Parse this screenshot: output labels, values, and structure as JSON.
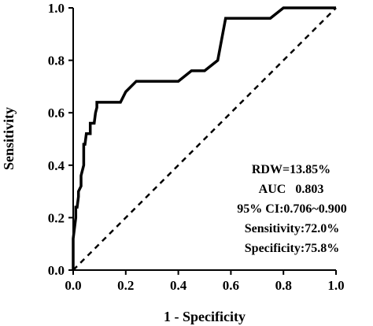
{
  "chart_data": {
    "type": "line",
    "xlabel": "1 - Specificity",
    "ylabel": "Sensitivity",
    "xlim": [
      0.0,
      1.0
    ],
    "ylim": [
      0.0,
      1.0
    ],
    "x_ticks": [
      "0.0",
      "0.2",
      "0.4",
      "0.6",
      "0.8",
      "1.0"
    ],
    "y_ticks": [
      "0.0",
      "0.2",
      "0.4",
      "0.6",
      "0.8",
      "1.0"
    ],
    "grid": false,
    "series": [
      {
        "style": "solid",
        "color": "#000000",
        "x": [
          0.0,
          0.0,
          0.01,
          0.01,
          0.015,
          0.02,
          0.02,
          0.03,
          0.03,
          0.04,
          0.04,
          0.045,
          0.05,
          0.05,
          0.065,
          0.065,
          0.08,
          0.085,
          0.09,
          0.09,
          0.18,
          0.2,
          0.24,
          0.24,
          0.4,
          0.45,
          0.5,
          0.55,
          0.58,
          0.6,
          0.75,
          0.8,
          1.0
        ],
        "y": [
          0.0,
          0.12,
          0.2,
          0.24,
          0.24,
          0.28,
          0.3,
          0.32,
          0.36,
          0.4,
          0.48,
          0.48,
          0.52,
          0.52,
          0.52,
          0.56,
          0.56,
          0.6,
          0.62,
          0.64,
          0.64,
          0.68,
          0.72,
          0.72,
          0.72,
          0.76,
          0.76,
          0.8,
          0.96,
          0.96,
          0.96,
          1.0,
          1.0
        ]
      },
      {
        "style": "dashed",
        "color": "#000000",
        "x": [
          0.0,
          1.0
        ],
        "y": [
          0.0,
          1.0
        ]
      }
    ],
    "annotations": [
      "RDW=13.85%",
      "AUC   0.803",
      "95% CI:0.706~0.900",
      "Sensitivity:72.0%",
      "Specificity:75.8%"
    ]
  }
}
